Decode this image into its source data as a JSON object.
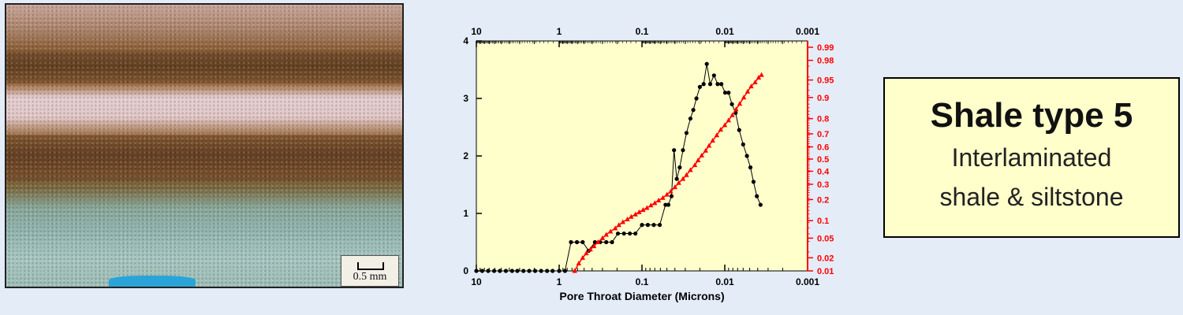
{
  "photo": {
    "scale_label": "0.5 mm"
  },
  "label_box": {
    "title": "Shale type 5",
    "line1": "Interlaminated",
    "line2": "shale & siltstone"
  },
  "chart_data": {
    "type": "line",
    "xlabel": "Pore Throat Diameter (Microns)",
    "x_scale": "log",
    "x_reversed": true,
    "xlim": [
      10,
      0.001
    ],
    "x_ticks": [
      "10",
      "1",
      "0.1",
      "0.01",
      "0.001"
    ],
    "ylim_left": [
      0,
      4
    ],
    "y_ticks_left": [
      "0",
      "1",
      "2",
      "3",
      "4"
    ],
    "y_scale_right": "probability",
    "y_ticks_right": [
      "0.01",
      "0.02",
      "0.05",
      "0.1",
      "0.2",
      "0.3",
      "0.4",
      "0.5",
      "0.6",
      "0.7",
      "0.8",
      "0.9",
      "0.95",
      "0.98",
      "0.99"
    ],
    "top_axis_ticks": [
      "10",
      "1",
      "0.1",
      "0.01",
      "0.001"
    ],
    "plot_background": "#ffffcc",
    "series": [
      {
        "axis": "left",
        "color": "#000000",
        "marker": "circle",
        "x": [
          10,
          8.5,
          7.2,
          6.1,
          5.2,
          4.4,
          3.7,
          3.2,
          2.7,
          2.3,
          1.95,
          1.65,
          1.4,
          1.2,
          1.0,
          0.85,
          0.72,
          0.61,
          0.52,
          0.44,
          0.37,
          0.32,
          0.27,
          0.23,
          0.195,
          0.165,
          0.14,
          0.12,
          0.1,
          0.085,
          0.072,
          0.061,
          0.052,
          0.048,
          0.044,
          0.041,
          0.038,
          0.035,
          0.032,
          0.029,
          0.026,
          0.024,
          0.022,
          0.02,
          0.018,
          0.0165,
          0.015,
          0.0135,
          0.0122,
          0.011,
          0.0099,
          0.009,
          0.0082,
          0.0074,
          0.0067,
          0.006,
          0.0054,
          0.0049,
          0.0045,
          0.0041,
          0.0037
        ],
        "y": [
          0,
          0,
          0,
          0,
          0,
          0,
          0,
          0,
          0,
          0,
          0,
          0,
          0,
          0,
          0,
          0,
          0.5,
          0.5,
          0.5,
          0.35,
          0.5,
          0.5,
          0.5,
          0.5,
          0.65,
          0.65,
          0.65,
          0.65,
          0.8,
          0.8,
          0.8,
          0.8,
          1.15,
          1.15,
          1.3,
          2.1,
          1.6,
          1.8,
          2.1,
          2.4,
          2.65,
          2.8,
          3.0,
          3.2,
          3.25,
          3.6,
          3.25,
          3.4,
          3.25,
          3.25,
          3.1,
          3.1,
          2.9,
          2.75,
          2.45,
          2.2,
          2.0,
          1.8,
          1.55,
          1.3,
          1.15
        ]
      },
      {
        "axis": "right",
        "color": "#ff0000",
        "marker": "triangle",
        "x": [
          0.65,
          0.58,
          0.52,
          0.47,
          0.42,
          0.38,
          0.34,
          0.3,
          0.27,
          0.24,
          0.21,
          0.19,
          0.17,
          0.15,
          0.135,
          0.12,
          0.108,
          0.097,
          0.087,
          0.078,
          0.07,
          0.063,
          0.056,
          0.05,
          0.045,
          0.04,
          0.036,
          0.032,
          0.029,
          0.026,
          0.023,
          0.021,
          0.019,
          0.017,
          0.0155,
          0.014,
          0.0125,
          0.0112,
          0.01,
          0.009,
          0.0081,
          0.0073,
          0.0066,
          0.0059,
          0.0053,
          0.0048,
          0.0043,
          0.0039,
          0.0036
        ],
        "y": [
          0.01,
          0.015,
          0.02,
          0.025,
          0.03,
          0.035,
          0.042,
          0.05,
          0.058,
          0.066,
          0.075,
          0.085,
          0.095,
          0.105,
          0.115,
          0.125,
          0.135,
          0.145,
          0.155,
          0.168,
          0.18,
          0.195,
          0.21,
          0.23,
          0.25,
          0.28,
          0.31,
          0.34,
          0.37,
          0.41,
          0.45,
          0.49,
          0.53,
          0.57,
          0.61,
          0.65,
          0.69,
          0.73,
          0.76,
          0.79,
          0.82,
          0.85,
          0.875,
          0.9,
          0.92,
          0.935,
          0.945,
          0.955,
          0.96
        ]
      }
    ]
  }
}
